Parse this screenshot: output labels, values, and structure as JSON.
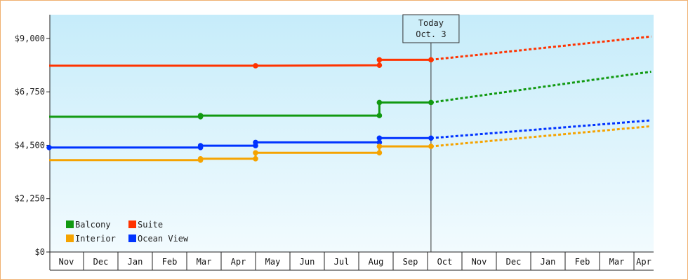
{
  "chart_data": {
    "type": "line",
    "title": "",
    "xlabel": "",
    "ylabel": "",
    "ylim": [
      0,
      10000
    ],
    "y_ticks": [
      {
        "value": 0,
        "label": "$0"
      },
      {
        "value": 2250,
        "label": "$2,250"
      },
      {
        "value": 4500,
        "label": "$4,500"
      },
      {
        "value": 6750,
        "label": "$6,750"
      },
      {
        "value": 9000,
        "label": "$9,000"
      }
    ],
    "x_months": [
      "Nov",
      "Dec",
      "Jan",
      "Feb",
      "Mar",
      "Apr",
      "May",
      "Jun",
      "Jul",
      "Aug",
      "Sep",
      "Oct",
      "Nov",
      "Dec",
      "Jan",
      "Feb",
      "Mar",
      "Apr"
    ],
    "x_unit": "month index (0 = Nov, 11 = Oct, 17 = Apr)",
    "today": {
      "line1": "Today",
      "line2": "Oct. 3",
      "x": 11.1
    },
    "grid": false,
    "legend_position": "bottom-left",
    "series": [
      {
        "name": "Suite",
        "color": "#ff3300",
        "points": [
          [
            0,
            7850
          ],
          [
            6.0,
            7850
          ],
          [
            9.6,
            7870
          ],
          [
            9.6,
            8100
          ],
          [
            11.1,
            8100
          ]
        ],
        "markers": [
          [
            6.0,
            7850
          ],
          [
            9.6,
            7870
          ],
          [
            9.6,
            8100
          ],
          [
            11.1,
            8100
          ]
        ],
        "forecast": [
          [
            11.1,
            8100
          ],
          [
            17.5,
            9080
          ]
        ]
      },
      {
        "name": "Balcony",
        "color": "#119911",
        "points": [
          [
            0,
            5700
          ],
          [
            4.4,
            5700
          ],
          [
            4.4,
            5750
          ],
          [
            9.6,
            5750
          ],
          [
            9.6,
            6300
          ],
          [
            11.1,
            6300
          ]
        ],
        "markers": [
          [
            4.4,
            5700
          ],
          [
            4.4,
            5750
          ],
          [
            9.6,
            5750
          ],
          [
            9.6,
            6300
          ],
          [
            11.1,
            6300
          ]
        ],
        "forecast": [
          [
            11.1,
            6300
          ],
          [
            17.5,
            7600
          ]
        ]
      },
      {
        "name": "Ocean View",
        "color": "#0033ff",
        "points": [
          [
            0,
            4400
          ],
          [
            4.4,
            4400
          ],
          [
            4.4,
            4480
          ],
          [
            6.0,
            4480
          ],
          [
            6.0,
            4620
          ],
          [
            9.6,
            4620
          ],
          [
            9.6,
            4800
          ],
          [
            11.1,
            4800
          ]
        ],
        "markers": [
          [
            0,
            4400
          ],
          [
            4.4,
            4400
          ],
          [
            4.4,
            4480
          ],
          [
            6.0,
            4480
          ],
          [
            6.0,
            4620
          ],
          [
            9.6,
            4620
          ],
          [
            9.6,
            4800
          ],
          [
            11.1,
            4800
          ]
        ],
        "forecast": [
          [
            11.1,
            4800
          ],
          [
            17.5,
            5550
          ]
        ]
      },
      {
        "name": "Interior",
        "color": "#f5a300",
        "points": [
          [
            0,
            3870
          ],
          [
            4.4,
            3870
          ],
          [
            4.4,
            3930
          ],
          [
            6.0,
            3930
          ],
          [
            6.0,
            4180
          ],
          [
            9.6,
            4180
          ],
          [
            9.6,
            4450
          ],
          [
            11.1,
            4450
          ]
        ],
        "markers": [
          [
            4.4,
            3870
          ],
          [
            4.4,
            3930
          ],
          [
            6.0,
            3930
          ],
          [
            6.0,
            4180
          ],
          [
            9.6,
            4180
          ],
          [
            9.6,
            4450
          ],
          [
            11.1,
            4450
          ]
        ],
        "forecast": [
          [
            11.1,
            4450
          ],
          [
            17.5,
            5300
          ]
        ]
      }
    ],
    "legend": [
      {
        "label": "Balcony",
        "color": "#119911"
      },
      {
        "label": "Suite",
        "color": "#ff3300"
      },
      {
        "label": "Interior",
        "color": "#f5a300"
      },
      {
        "label": "Ocean View",
        "color": "#0033ff"
      }
    ]
  }
}
